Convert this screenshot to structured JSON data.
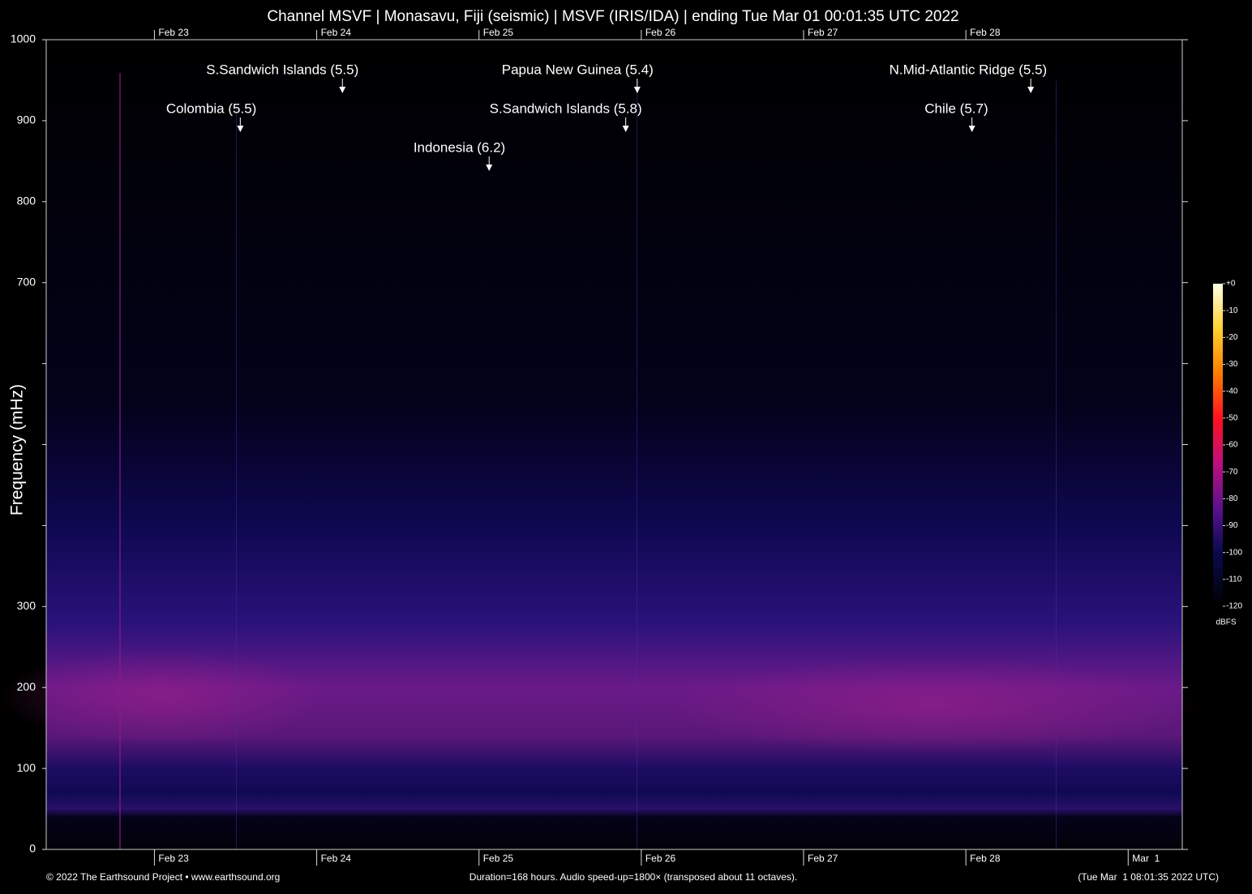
{
  "chart_data": {
    "type": "spectrogram",
    "title": "Channel MSVF | Monasavu, Fiji (seismic) | MSVF (IRIS/IDA) | ending Tue Mar 01 00:01:35 UTC 2022",
    "ylabel": "Frequency (mHz)",
    "ylim": [
      0,
      1000
    ],
    "yticks": [
      0,
      100,
      200,
      300,
      700,
      800,
      900,
      1000
    ],
    "yticks_unlabeled": [
      400,
      500,
      600
    ],
    "xlim": [
      0,
      168
    ],
    "xticks": [
      {
        "value": 16,
        "label": "Feb 23"
      },
      {
        "value": 40,
        "label": "Feb 24"
      },
      {
        "value": 64,
        "label": "Feb 25"
      },
      {
        "value": 88,
        "label": "Feb 26"
      },
      {
        "value": 112,
        "label": "Feb 27"
      },
      {
        "value": 136,
        "label": "Feb 28"
      },
      {
        "value": 160,
        "label": "Mar  1"
      }
    ],
    "xticks_top": [
      {
        "value": 16,
        "label": "Feb 23"
      },
      {
        "value": 40,
        "label": "Feb 24"
      },
      {
        "value": 64,
        "label": "Feb 25"
      },
      {
        "value": 88,
        "label": "Feb 26"
      },
      {
        "value": 112,
        "label": "Feb 27"
      },
      {
        "value": 136,
        "label": "Feb 28"
      }
    ],
    "annotations": [
      {
        "text": "S.Sandwich Islands (5.5)",
        "x": 43.8
      },
      {
        "text": "Colombia (5.5)",
        "x": 28.7
      },
      {
        "text": "Indonesia (6.2)",
        "x": 65.5
      },
      {
        "text": "Papua New Guinea (5.4)",
        "x": 87.4
      },
      {
        "text": "S.Sandwich Islands (5.8)",
        "x": 85.7
      },
      {
        "text": "N.Mid-Atlantic Ridge (5.5)",
        "x": 145.6
      },
      {
        "text": "Chile (5.7)",
        "x": 136.9
      }
    ],
    "colorbar": {
      "label": "dBFS",
      "lim": [
        -120,
        0
      ],
      "ticks": [
        {
          "value": 0,
          "label": "+0"
        },
        -10,
        -20,
        -30,
        -40,
        -50,
        -60,
        -70,
        -80,
        -90,
        -100,
        -110,
        -120
      ]
    },
    "footer": {
      "left": "© 2022 The Earthsound Project • www.earthsound.org",
      "center": "Duration=168 hours. Audio speed-up=1800× (transposed about 11 octaves).",
      "right": "(Tue Mar  1 08:01:35 2022 UTC)"
    }
  }
}
